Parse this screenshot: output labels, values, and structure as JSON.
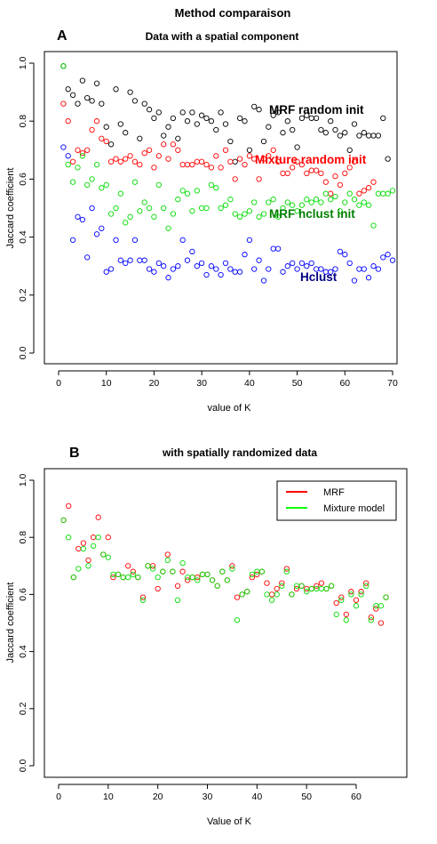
{
  "figure": {
    "title": "Method comparaison",
    "panel_a_letter": "A",
    "panel_b_letter": "B"
  },
  "colors": {
    "black": "#000000",
    "red": "#ff0000",
    "green": "#00cc00",
    "blue": "#0000ff",
    "green_dark": "#008000",
    "navy": "#000080"
  },
  "chart_data": [
    {
      "type": "scatter",
      "title": "Data with a spatial component",
      "xlabel": "value of K",
      "ylabel": "Jaccard coefficient",
      "xlim": [
        0,
        70
      ],
      "ylim": [
        0,
        1
      ],
      "xticks": [
        0,
        10,
        20,
        30,
        40,
        50,
        60,
        70
      ],
      "yticks": [
        0.0,
        0.2,
        0.4,
        0.6,
        0.8,
        1.0
      ],
      "grid": false,
      "annotations": [
        {
          "text": "MRF random init",
          "series": "black"
        },
        {
          "text": "Mixture random init",
          "series": "red"
        },
        {
          "text": "MRF hclust init",
          "series": "green"
        },
        {
          "text": "Hclust",
          "series": "blue"
        }
      ],
      "series": [
        {
          "color": "black",
          "x": [
            1,
            2,
            3,
            4,
            5,
            6,
            7,
            8,
            9,
            10,
            11,
            12,
            13,
            14,
            15,
            16,
            17,
            18,
            19,
            20,
            21,
            22,
            23,
            24,
            25,
            26,
            27,
            28,
            29,
            30,
            31,
            32,
            33,
            34,
            35,
            36,
            37,
            38,
            39,
            40,
            41,
            42,
            43,
            44,
            45,
            46,
            47,
            48,
            49,
            50,
            51,
            52,
            53,
            54,
            55,
            56,
            57,
            58,
            59,
            60,
            61,
            62,
            63,
            64,
            65,
            66,
            67,
            68,
            69
          ],
          "y": [
            0.99,
            0.91,
            0.89,
            0.86,
            0.94,
            0.88,
            0.87,
            0.93,
            0.86,
            0.78,
            0.72,
            0.91,
            0.79,
            0.76,
            0.9,
            0.87,
            0.74,
            0.86,
            0.84,
            0.81,
            0.83,
            0.75,
            0.78,
            0.81,
            0.74,
            0.83,
            0.8,
            0.83,
            0.79,
            0.82,
            0.81,
            0.8,
            0.77,
            0.83,
            0.79,
            0.73,
            0.66,
            0.81,
            0.8,
            0.7,
            0.85,
            0.84,
            0.73,
            0.78,
            0.82,
            0.83,
            0.76,
            0.8,
            0.77,
            0.71,
            0.81,
            0.82,
            0.81,
            0.81,
            0.77,
            0.76,
            0.8,
            0.77,
            0.75,
            0.76,
            0.7,
            0.79,
            0.75,
            0.76,
            0.75,
            0.75,
            0.75,
            0.81,
            0.67
          ]
        },
        {
          "color": "red",
          "x": [
            1,
            2,
            3,
            4,
            5,
            6,
            7,
            8,
            9,
            10,
            11,
            12,
            13,
            14,
            15,
            16,
            17,
            18,
            19,
            20,
            21,
            22,
            23,
            24,
            25,
            26,
            27,
            28,
            29,
            30,
            31,
            32,
            33,
            34,
            35,
            36,
            37,
            38,
            39,
            40,
            41,
            42,
            43,
            44,
            45,
            46,
            47,
            48,
            49,
            50,
            51,
            52,
            53,
            54,
            55,
            56,
            57,
            58,
            59,
            60,
            61,
            62,
            63,
            64,
            65,
            66
          ],
          "y": [
            0.86,
            0.8,
            0.66,
            0.7,
            0.69,
            0.7,
            0.77,
            0.8,
            0.74,
            0.73,
            0.66,
            0.67,
            0.66,
            0.67,
            0.68,
            0.66,
            0.65,
            0.69,
            0.7,
            0.64,
            0.68,
            0.72,
            0.67,
            0.72,
            0.7,
            0.65,
            0.65,
            0.65,
            0.66,
            0.66,
            0.65,
            0.64,
            0.68,
            0.64,
            0.7,
            0.66,
            0.6,
            0.67,
            0.65,
            0.68,
            0.67,
            0.6,
            0.67,
            0.68,
            0.7,
            0.66,
            0.62,
            0.62,
            0.64,
            0.66,
            0.65,
            0.62,
            0.63,
            0.63,
            0.62,
            0.59,
            0.55,
            0.61,
            0.58,
            0.62,
            0.64,
            0.66,
            0.55,
            0.56,
            0.57,
            0.59
          ]
        },
        {
          "color": "green",
          "x": [
            1,
            2,
            3,
            4,
            5,
            6,
            7,
            8,
            9,
            10,
            11,
            12,
            13,
            14,
            15,
            16,
            17,
            18,
            19,
            20,
            21,
            22,
            23,
            24,
            25,
            26,
            27,
            28,
            29,
            30,
            31,
            32,
            33,
            34,
            35,
            36,
            37,
            38,
            39,
            40,
            41,
            42,
            43,
            44,
            45,
            46,
            47,
            48,
            49,
            50,
            51,
            52,
            53,
            54,
            55,
            56,
            57,
            58,
            59,
            60,
            61,
            62,
            63,
            64,
            65,
            66,
            67,
            68,
            69,
            70
          ],
          "y": [
            0.99,
            0.65,
            0.59,
            0.64,
            0.68,
            0.58,
            0.6,
            0.65,
            0.57,
            0.58,
            0.48,
            0.5,
            0.55,
            0.45,
            0.47,
            0.59,
            0.49,
            0.52,
            0.5,
            0.47,
            0.58,
            0.5,
            0.43,
            0.48,
            0.53,
            0.56,
            0.55,
            0.49,
            0.56,
            0.5,
            0.5,
            0.58,
            0.57,
            0.5,
            0.51,
            0.53,
            0.48,
            0.47,
            0.48,
            0.49,
            0.52,
            0.47,
            0.48,
            0.52,
            0.53,
            0.47,
            0.5,
            0.52,
            0.51,
            0.49,
            0.51,
            0.53,
            0.52,
            0.53,
            0.52,
            0.55,
            0.53,
            0.54,
            0.49,
            0.52,
            0.55,
            0.53,
            0.51,
            0.52,
            0.51,
            0.44,
            0.55,
            0.55,
            0.55,
            0.56
          ]
        },
        {
          "color": "blue",
          "x": [
            1,
            2,
            3,
            4,
            5,
            6,
            7,
            8,
            9,
            10,
            11,
            12,
            13,
            14,
            15,
            16,
            17,
            18,
            19,
            20,
            21,
            22,
            23,
            24,
            25,
            26,
            27,
            28,
            29,
            30,
            31,
            32,
            33,
            34,
            35,
            36,
            37,
            38,
            39,
            40,
            41,
            42,
            43,
            44,
            45,
            46,
            47,
            48,
            49,
            50,
            51,
            52,
            53,
            54,
            55,
            56,
            57,
            58,
            59,
            60,
            61,
            62,
            63,
            64,
            65,
            66,
            67,
            68,
            69,
            70
          ],
          "y": [
            0.71,
            0.68,
            0.39,
            0.47,
            0.46,
            0.33,
            0.5,
            0.41,
            0.43,
            0.28,
            0.29,
            0.39,
            0.32,
            0.31,
            0.32,
            0.39,
            0.32,
            0.32,
            0.29,
            0.28,
            0.31,
            0.3,
            0.26,
            0.29,
            0.3,
            0.39,
            0.32,
            0.35,
            0.3,
            0.31,
            0.27,
            0.3,
            0.29,
            0.27,
            0.31,
            0.29,
            0.28,
            0.28,
            0.34,
            0.39,
            0.29,
            0.32,
            0.25,
            0.29,
            0.36,
            0.36,
            0.28,
            0.3,
            0.31,
            0.29,
            0.31,
            0.3,
            0.31,
            0.29,
            0.29,
            0.28,
            0.28,
            0.29,
            0.35,
            0.34,
            0.31,
            0.25,
            0.29,
            0.29,
            0.26,
            0.3,
            0.29,
            0.33,
            0.34,
            0.32
          ]
        }
      ]
    },
    {
      "type": "scatter",
      "title": "with spatially randomized data",
      "xlabel": "Value of K",
      "ylabel": "Jaccard coefficient",
      "xlim": [
        0,
        66
      ],
      "ylim": [
        0,
        1
      ],
      "xticks": [
        0,
        10,
        20,
        30,
        40,
        50,
        60
      ],
      "yticks": [
        0.0,
        0.2,
        0.4,
        0.6,
        0.8,
        1.0
      ],
      "grid": false,
      "legend_position": "top-right",
      "series": [
        {
          "name": "MRF",
          "color": "red",
          "x": [
            1,
            2,
            3,
            4,
            5,
            6,
            7,
            8,
            9,
            10,
            11,
            12,
            13,
            14,
            15,
            16,
            17,
            18,
            19,
            20,
            21,
            22,
            23,
            24,
            25,
            26,
            27,
            28,
            29,
            30,
            31,
            32,
            33,
            34,
            35,
            36,
            37,
            38,
            39,
            40,
            41,
            42,
            43,
            44,
            45,
            46,
            47,
            48,
            49,
            50,
            51,
            52,
            53,
            54,
            55,
            56,
            57,
            58,
            59,
            60,
            61,
            62,
            63,
            64,
            65,
            66
          ],
          "y": [
            0.86,
            0.91,
            0.66,
            0.76,
            0.78,
            0.72,
            0.8,
            0.87,
            0.74,
            0.8,
            0.66,
            0.67,
            0.66,
            0.7,
            0.68,
            0.66,
            0.59,
            0.7,
            0.7,
            0.62,
            0.68,
            0.74,
            0.68,
            0.63,
            0.68,
            0.65,
            0.66,
            0.66,
            0.67,
            0.67,
            0.65,
            0.63,
            0.68,
            0.65,
            0.7,
            0.59,
            0.6,
            0.61,
            0.66,
            0.67,
            0.68,
            0.64,
            0.6,
            0.62,
            0.64,
            0.69,
            0.6,
            0.62,
            0.63,
            0.62,
            0.62,
            0.63,
            0.64,
            0.62,
            0.63,
            0.57,
            0.59,
            0.53,
            0.61,
            0.58,
            0.61,
            0.64,
            0.52,
            0.55,
            0.5,
            0.59
          ]
        },
        {
          "name": "Mixture model",
          "color": "green",
          "x": [
            1,
            2,
            3,
            4,
            5,
            6,
            7,
            8,
            9,
            10,
            11,
            12,
            13,
            14,
            15,
            16,
            17,
            18,
            19,
            20,
            21,
            22,
            23,
            24,
            25,
            26,
            27,
            28,
            29,
            30,
            31,
            32,
            33,
            34,
            35,
            36,
            37,
            38,
            39,
            40,
            41,
            42,
            43,
            44,
            45,
            46,
            47,
            48,
            49,
            50,
            51,
            52,
            53,
            54,
            55,
            56,
            57,
            58,
            59,
            60,
            61,
            62,
            63,
            64,
            65,
            66
          ],
          "y": [
            0.86,
            0.8,
            0.66,
            0.69,
            0.76,
            0.7,
            0.77,
            0.8,
            0.74,
            0.73,
            0.67,
            0.67,
            0.66,
            0.66,
            0.67,
            0.66,
            0.58,
            0.7,
            0.69,
            0.66,
            0.68,
            0.72,
            0.68,
            0.58,
            0.71,
            0.66,
            0.66,
            0.65,
            0.67,
            0.67,
            0.65,
            0.63,
            0.68,
            0.65,
            0.69,
            0.51,
            0.6,
            0.61,
            0.67,
            0.68,
            0.68,
            0.6,
            0.58,
            0.6,
            0.63,
            0.68,
            0.6,
            0.63,
            0.63,
            0.61,
            0.62,
            0.62,
            0.62,
            0.62,
            0.63,
            0.53,
            0.58,
            0.51,
            0.6,
            0.56,
            0.6,
            0.63,
            0.51,
            0.56,
            0.56,
            0.59
          ]
        }
      ]
    }
  ]
}
